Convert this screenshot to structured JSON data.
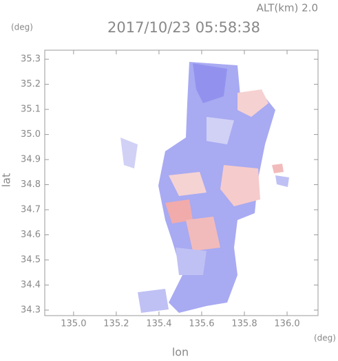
{
  "chart_data": {
    "type": "radar-map",
    "title": "2017/10/23 05:58:38",
    "altitude_label": "ALT(km) 2.0",
    "y_unit": "(deg)",
    "x_unit": "(deg)",
    "x_label": "lon",
    "y_label": "lat",
    "xlim": [
      134.865,
      136.145
    ],
    "ylim": [
      34.278,
      35.336
    ],
    "xticks": [
      {
        "value": 135,
        "label": "135.0"
      },
      135.2,
      135.4,
      135.6,
      135.8,
      {
        "value": 136,
        "label": "136.0"
      }
    ],
    "yticks": [
      34.3,
      34.4,
      34.5,
      34.6,
      34.7,
      34.8,
      34.9,
      {
        "value": 35,
        "label": "35.0"
      },
      35.1,
      35.2,
      35.3
    ]
  }
}
